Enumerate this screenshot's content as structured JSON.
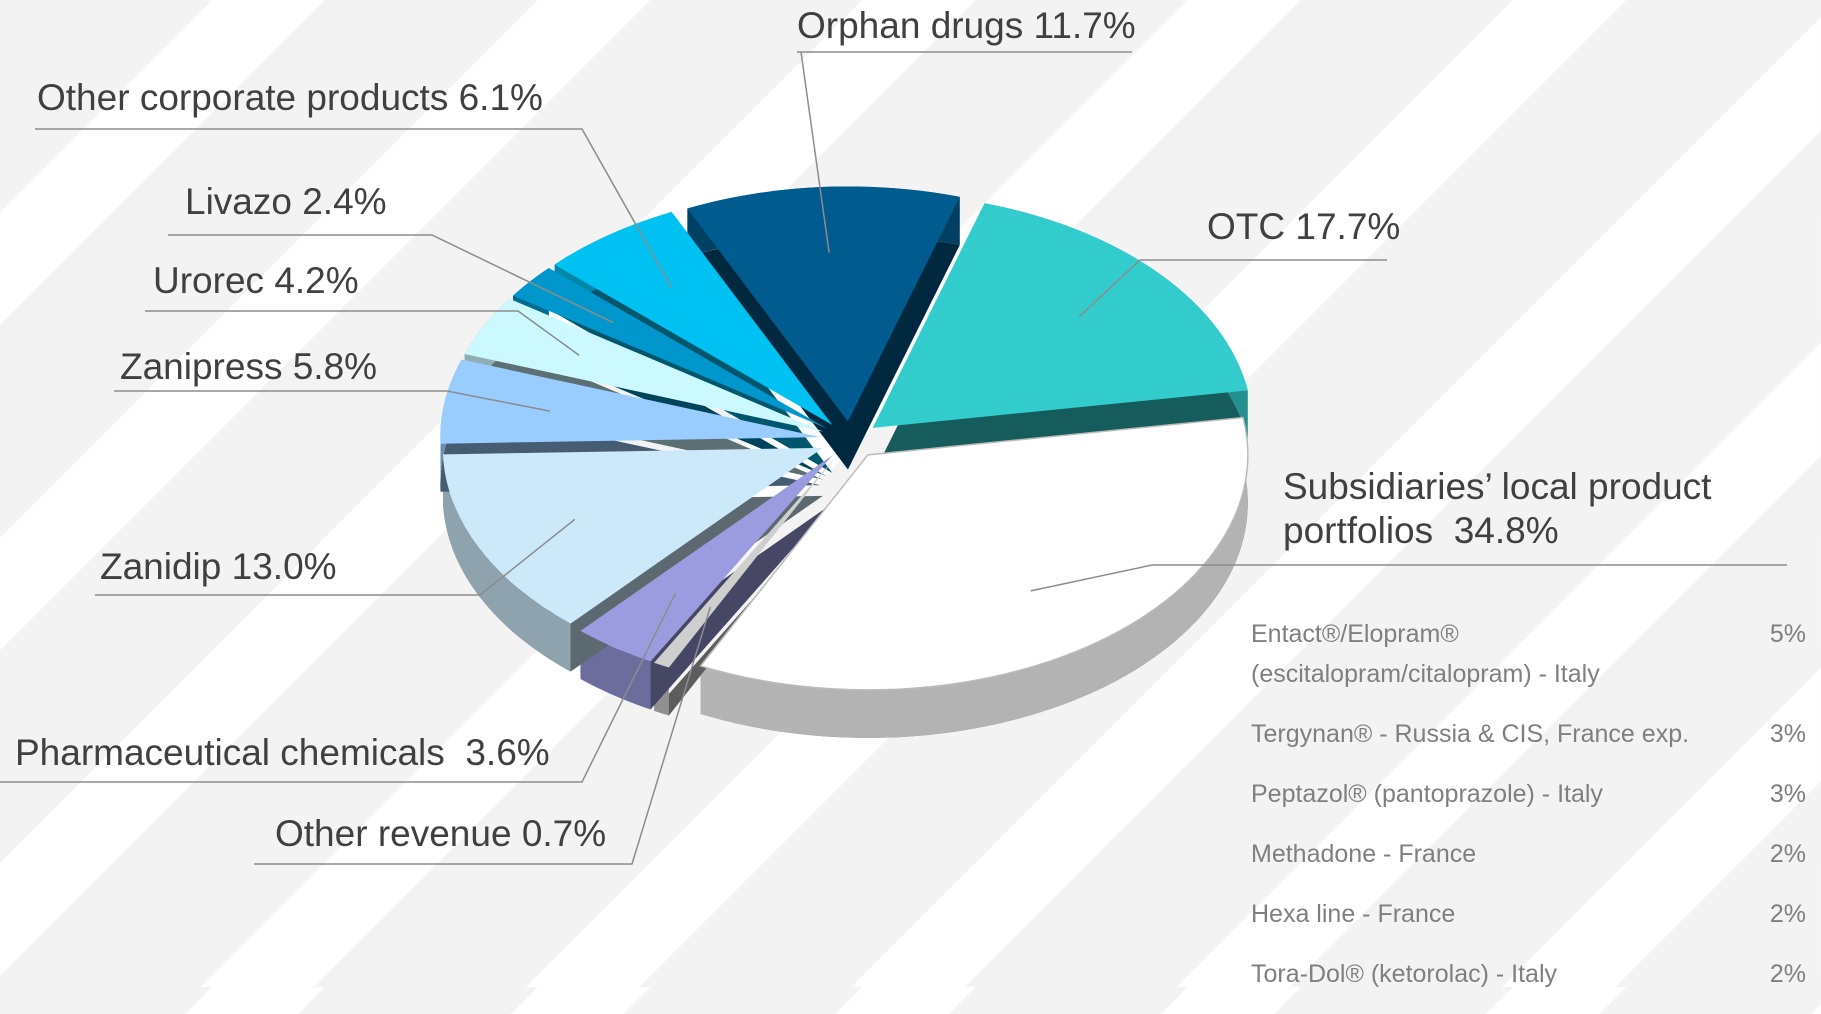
{
  "chart_data": {
    "type": "pie",
    "categories": [
      "Orphan drugs",
      "OTC",
      "Subsidiaries’ local product portfolios",
      "Other revenue",
      "Pharmaceutical chemicals",
      "Zanidip",
      "Zanipress",
      "Urorec",
      "Livazo",
      "Other corporate products"
    ],
    "values": [
      11.7,
      17.7,
      34.8,
      0.7,
      3.6,
      13.0,
      5.8,
      4.2,
      2.4,
      6.1
    ],
    "value_labels": [
      "11.7%",
      "17.7%",
      "34.8%",
      "0.7%",
      "3.6%",
      "13.0%",
      "5.8%",
      "4.2%",
      "2.4%",
      "6.1%"
    ],
    "colors": [
      "#005b8e",
      "#33cccc",
      "#ffffff",
      "#cfcfcf",
      "#9b9be0",
      "#cce9fa",
      "#99ccff",
      "#ccf9ff",
      "#0098cc",
      "#00c2f2"
    ]
  },
  "breakdown": {
    "rows": [
      {
        "name": "Entact®/Elopram® (escitalopram/citalopram) - Italy",
        "share": "5%"
      },
      {
        "name": "Tergynan® - Russia & CIS, France exp.",
        "share": "3%"
      },
      {
        "name": "Peptazol® (pantoprazole) - Italy",
        "share": "3%"
      },
      {
        "name": "Methadone - France",
        "share": "2%"
      },
      {
        "name": "Hexa line - France",
        "share": "2%"
      },
      {
        "name": "Tora-Dol® (ketorolac) - Italy",
        "share": "2%"
      }
    ]
  }
}
